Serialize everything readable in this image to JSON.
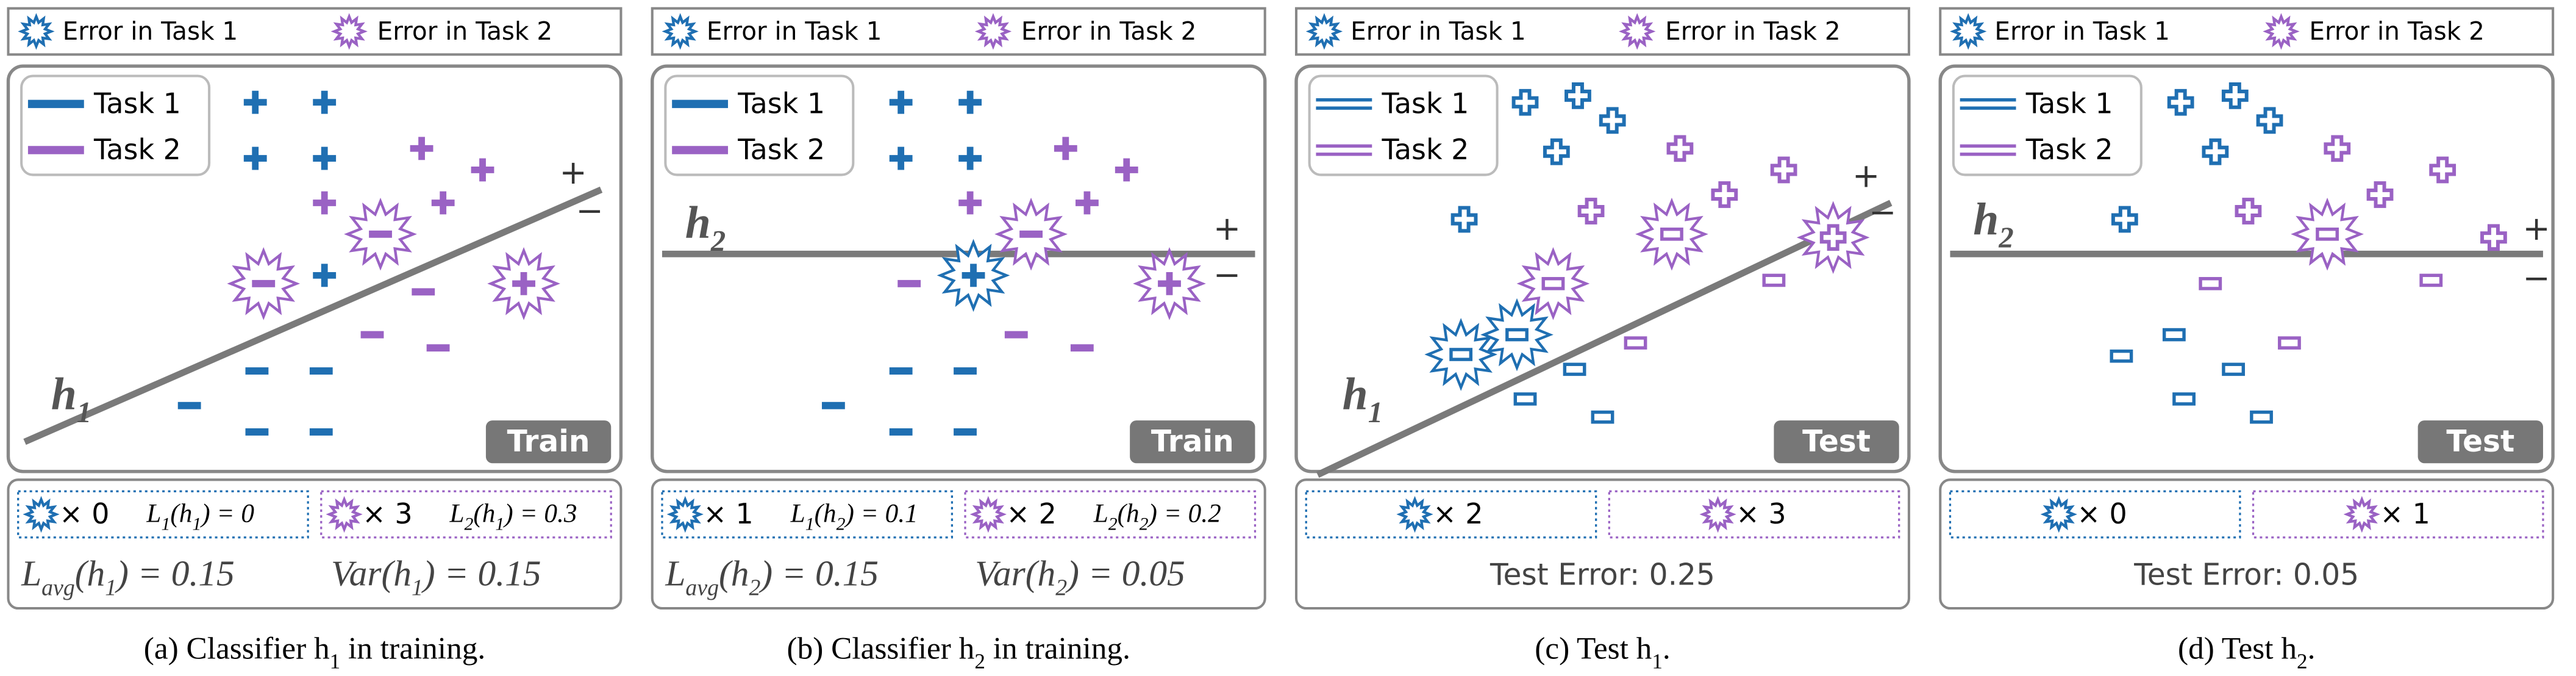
{
  "panels": [
    {
      "legend": [
        "Error in Task 1",
        "Error in Task 2"
      ],
      "tasks": [
        "Task 1",
        "Task 2"
      ],
      "classifier": [
        "h",
        "1"
      ],
      "plus": "+",
      "minus": "−",
      "tag": "Train",
      "counts": [
        {
          "text": "× 0",
          "formula": [
            "L",
            "1",
            "(h",
            "1",
            ") = 0"
          ]
        },
        {
          "text": "× 3",
          "formula": [
            "L",
            "2",
            "(h",
            "1",
            ") = 0.3"
          ]
        }
      ],
      "summary": [
        [
          "L",
          "avg",
          "(h",
          "1",
          ") = 0.15"
        ],
        [
          "Var(h",
          "1",
          ") = 0.15"
        ]
      ],
      "caption": [
        "(a)  Classifier h",
        "1",
        " in training."
      ]
    },
    {
      "legend": [
        "Error in Task 1",
        "Error in Task 2"
      ],
      "tasks": [
        "Task 1",
        "Task 2"
      ],
      "classifier": [
        "h",
        "2"
      ],
      "plus": "+",
      "minus": "−",
      "tag": "Train",
      "counts": [
        {
          "text": "× 1",
          "formula": [
            "L",
            "1",
            "(h",
            "2",
            ") = 0.1"
          ]
        },
        {
          "text": "× 2",
          "formula": [
            "L",
            "2",
            "(h",
            "2",
            ") = 0.2"
          ]
        }
      ],
      "summary": [
        [
          "L",
          "avg",
          "(h",
          "2",
          ") = 0.15"
        ],
        [
          "Var(h",
          "2",
          ") = 0.05"
        ]
      ],
      "caption": [
        "(b)  Classifier h",
        "2",
        " in training."
      ]
    },
    {
      "legend": [
        "Error in Task 1",
        "Error in Task 2"
      ],
      "tasks": [
        "Task 1",
        "Task 2"
      ],
      "classifier": [
        "h",
        "1"
      ],
      "plus": "+",
      "minus": "−",
      "tag": "Test",
      "counts": [
        {
          "text": "× 2"
        },
        {
          "text": "× 3"
        }
      ],
      "summary": "Test Error: 0.25",
      "caption": [
        "(c)  Test h",
        "1",
        "."
      ]
    },
    {
      "legend": [
        "Error in Task 1",
        "Error in Task 2"
      ],
      "tasks": [
        "Task 1",
        "Task 2"
      ],
      "classifier": [
        "h",
        "2"
      ],
      "plus": "+",
      "minus": "−",
      "tag": "Test",
      "counts": [
        {
          "text": "× 0"
        },
        {
          "text": "× 1"
        }
      ],
      "summary": "Test Error: 0.05",
      "caption": [
        "(d)  Test h",
        "2",
        "."
      ]
    }
  ]
}
